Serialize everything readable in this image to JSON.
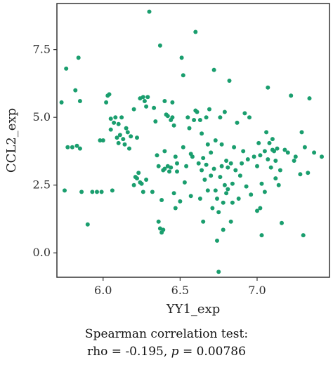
{
  "chart_data": {
    "type": "scatter",
    "xlabel": "YY1_exp",
    "ylabel": "CCL2_exp",
    "xlim": [
      5.7,
      7.47
    ],
    "ylim": [
      -0.9,
      9.2
    ],
    "x_ticks": [
      6.0,
      6.5,
      7.0
    ],
    "x_tick_labels": [
      "6.0",
      "6.5",
      "7.0"
    ],
    "y_ticks": [
      0.0,
      2.5,
      5.0,
      7.5
    ],
    "y_tick_labels": [
      "0.0",
      "2.5",
      "5.0",
      "7.5"
    ],
    "grid": false,
    "point_color": "#1a9e6e",
    "caption_line1": "Spearman correlation test:",
    "caption_line2_prefix": "rho = -0.195, ",
    "caption_line2_p": "p",
    "caption_line2_suffix": " = 0.00786",
    "points": [
      [
        5.73,
        5.55
      ],
      [
        5.75,
        2.3
      ],
      [
        5.76,
        6.8
      ],
      [
        5.77,
        3.9
      ],
      [
        5.8,
        3.9
      ],
      [
        5.82,
        6.0
      ],
      [
        5.83,
        3.95
      ],
      [
        5.84,
        7.2
      ],
      [
        5.85,
        5.6
      ],
      [
        5.86,
        2.25
      ],
      [
        5.85,
        3.85
      ],
      [
        5.9,
        1.05
      ],
      [
        5.93,
        2.25
      ],
      [
        5.96,
        2.25
      ],
      [
        5.98,
        4.15
      ],
      [
        5.99,
        2.25
      ],
      [
        6.0,
        4.15
      ],
      [
        6.02,
        5.55
      ],
      [
        6.03,
        5.8
      ],
      [
        6.04,
        5.85
      ],
      [
        6.05,
        4.95
      ],
      [
        6.05,
        4.55
      ],
      [
        6.06,
        2.3
      ],
      [
        6.07,
        4.8
      ],
      [
        6.08,
        5.0
      ],
      [
        6.09,
        4.25
      ],
      [
        6.1,
        4.75
      ],
      [
        6.11,
        4.35
      ],
      [
        6.1,
        4.05
      ],
      [
        6.12,
        5.0
      ],
      [
        6.13,
        4.2
      ],
      [
        6.14,
        4.0
      ],
      [
        6.15,
        4.6
      ],
      [
        6.16,
        4.45
      ],
      [
        6.17,
        3.85
      ],
      [
        6.18,
        4.3
      ],
      [
        6.2,
        5.3
      ],
      [
        6.22,
        4.25
      ],
      [
        6.2,
        2.5
      ],
      [
        6.21,
        2.8
      ],
      [
        6.22,
        2.75
      ],
      [
        6.23,
        2.95
      ],
      [
        6.24,
        2.6
      ],
      [
        6.25,
        2.55
      ],
      [
        6.26,
        2.25
      ],
      [
        6.24,
        5.7
      ],
      [
        6.26,
        5.75
      ],
      [
        6.27,
        5.6
      ],
      [
        6.28,
        5.4
      ],
      [
        6.29,
        5.75
      ],
      [
        6.28,
        2.7
      ],
      [
        6.3,
        8.9
      ],
      [
        6.32,
        2.25
      ],
      [
        6.33,
        5.35
      ],
      [
        6.34,
        4.85
      ],
      [
        6.35,
        3.6
      ],
      [
        6.36,
        3.2
      ],
      [
        6.37,
        7.65
      ],
      [
        6.36,
        1.15
      ],
      [
        6.37,
        0.9
      ],
      [
        6.38,
        0.75
      ],
      [
        6.39,
        0.85
      ],
      [
        6.38,
        1.95
      ],
      [
        6.39,
        3.05
      ],
      [
        6.4,
        3.1
      ],
      [
        6.4,
        3.75
      ],
      [
        6.41,
        5.1
      ],
      [
        6.42,
        3.2
      ],
      [
        6.43,
        3.0
      ],
      [
        6.44,
        4.9
      ],
      [
        6.44,
        3.15
      ],
      [
        6.45,
        5.0
      ],
      [
        6.46,
        2.2
      ],
      [
        6.47,
        1.65
      ],
      [
        6.48,
        3.3
      ],
      [
        6.4,
        5.6
      ],
      [
        6.42,
        5.05
      ],
      [
        6.45,
        5.55
      ],
      [
        6.46,
        4.7
      ],
      [
        6.47,
        3.55
      ],
      [
        6.48,
        3.0
      ],
      [
        6.5,
        1.9
      ],
      [
        6.51,
        7.2
      ],
      [
        6.52,
        6.55
      ],
      [
        6.52,
        3.9
      ],
      [
        6.53,
        2.6
      ],
      [
        6.54,
        3.2
      ],
      [
        6.55,
        5.0
      ],
      [
        6.56,
        4.6
      ],
      [
        6.57,
        3.65
      ],
      [
        6.57,
        2.1
      ],
      [
        6.58,
        3.55
      ],
      [
        6.59,
        4.9
      ],
      [
        6.6,
        5.25
      ],
      [
        6.6,
        8.15
      ],
      [
        6.61,
        5.2
      ],
      [
        6.62,
        3.3
      ],
      [
        6.63,
        2.0
      ],
      [
        6.63,
        4.9
      ],
      [
        6.64,
        4.4
      ],
      [
        6.64,
        3.05
      ],
      [
        6.65,
        3.5
      ],
      [
        6.65,
        1.15
      ],
      [
        6.66,
        2.7
      ],
      [
        6.67,
        3.25
      ],
      [
        6.67,
        5.0
      ],
      [
        6.68,
        4.0
      ],
      [
        6.68,
        2.3
      ],
      [
        6.69,
        5.3
      ],
      [
        6.7,
        3.7
      ],
      [
        6.7,
        2.85
      ],
      [
        6.71,
        1.65
      ],
      [
        6.72,
        6.75
      ],
      [
        6.72,
        3.1
      ],
      [
        6.73,
        2.3
      ],
      [
        6.73,
        4.15
      ],
      [
        6.74,
        0.45
      ],
      [
        6.74,
        2.0
      ],
      [
        6.75,
        1.5
      ],
      [
        6.75,
        -0.7
      ],
      [
        6.76,
        5.0
      ],
      [
        6.76,
        2.8
      ],
      [
        6.77,
        3.2
      ],
      [
        6.77,
        4.0
      ],
      [
        6.78,
        1.85
      ],
      [
        6.78,
        0.85
      ],
      [
        6.79,
        2.5
      ],
      [
        6.79,
        5.2
      ],
      [
        6.8,
        3.4
      ],
      [
        6.8,
        2.2
      ],
      [
        6.81,
        3.15
      ],
      [
        6.81,
        2.35
      ],
      [
        6.82,
        6.35
      ],
      [
        6.83,
        1.15
      ],
      [
        6.83,
        3.3
      ],
      [
        6.84,
        2.55
      ],
      [
        6.84,
        1.85
      ],
      [
        6.85,
        3.9
      ],
      [
        6.86,
        3.05
      ],
      [
        6.87,
        4.8
      ],
      [
        6.88,
        2.0
      ],
      [
        6.89,
        2.85
      ],
      [
        6.9,
        3.3
      ],
      [
        6.91,
        3.75
      ],
      [
        6.92,
        5.15
      ],
      [
        6.93,
        2.45
      ],
      [
        6.94,
        3.45
      ],
      [
        6.95,
        5.0
      ],
      [
        6.96,
        2.15
      ],
      [
        6.98,
        3.55
      ],
      [
        7.0,
        3.2
      ],
      [
        7.01,
        4.05
      ],
      [
        7.02,
        3.6
      ],
      [
        7.03,
        2.55
      ],
      [
        7.05,
        3.75
      ],
      [
        7.06,
        4.45
      ],
      [
        7.07,
        3.45
      ],
      [
        7.08,
        4.05
      ],
      [
        7.09,
        3.15
      ],
      [
        7.1,
        4.2
      ],
      [
        7.11,
        3.75
      ],
      [
        7.12,
        3.4
      ],
      [
        7.13,
        3.85
      ],
      [
        7.15,
        3.05
      ],
      [
        7.0,
        1.55
      ],
      [
        7.02,
        1.65
      ],
      [
        7.03,
        0.65
      ],
      [
        7.05,
        2.25
      ],
      [
        7.07,
        6.1
      ],
      [
        7.1,
        3.8
      ],
      [
        7.12,
        2.75
      ],
      [
        7.14,
        2.5
      ],
      [
        7.16,
        1.1
      ],
      [
        7.18,
        3.8
      ],
      [
        7.2,
        3.7
      ],
      [
        7.22,
        5.8
      ],
      [
        7.24,
        3.4
      ],
      [
        7.25,
        3.55
      ],
      [
        7.28,
        2.9
      ],
      [
        7.29,
        4.45
      ],
      [
        7.3,
        0.65
      ],
      [
        7.31,
        3.9
      ],
      [
        7.33,
        2.95
      ],
      [
        7.34,
        5.7
      ],
      [
        7.37,
        3.7
      ],
      [
        7.42,
        3.55
      ]
    ]
  }
}
